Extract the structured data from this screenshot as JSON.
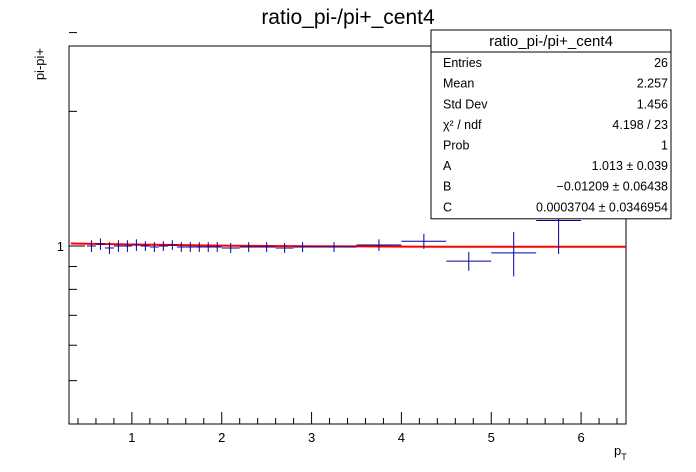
{
  "chart_data": {
    "type": "scatter",
    "title": "ratio_pi-/pi+_cent4",
    "xlabel": "p",
    "xlabel_sub": "T",
    "ylabel": "pi-pi+",
    "xlim": [
      0.3,
      6.5
    ],
    "ylim": [
      0.4,
      2.8
    ],
    "y_log": true,
    "grid": false,
    "x_ticks": [
      1,
      2,
      3,
      4,
      5,
      6
    ],
    "x_tick_labels": [
      "1",
      "2",
      "3",
      "4",
      "5",
      "6"
    ],
    "y_ticks": [
      1
    ],
    "y_tick_labels": [
      "1"
    ],
    "series": [
      {
        "kind": "errorbars",
        "color": "#000099",
        "points": [
          {
            "x": 0.55,
            "y": 1.0,
            "xerr": 0.05,
            "yerr": 0.03
          },
          {
            "x": 0.65,
            "y": 1.01,
            "xerr": 0.05,
            "yerr": 0.03
          },
          {
            "x": 0.75,
            "y": 0.99,
            "xerr": 0.05,
            "yerr": 0.03
          },
          {
            "x": 0.85,
            "y": 1.0,
            "xerr": 0.05,
            "yerr": 0.03
          },
          {
            "x": 0.95,
            "y": 1.0,
            "xerr": 0.05,
            "yerr": 0.03
          },
          {
            "x": 1.05,
            "y": 1.005,
            "xerr": 0.05,
            "yerr": 0.03
          },
          {
            "x": 1.15,
            "y": 1.0,
            "xerr": 0.05,
            "yerr": 0.025
          },
          {
            "x": 1.25,
            "y": 0.995,
            "xerr": 0.05,
            "yerr": 0.025
          },
          {
            "x": 1.35,
            "y": 1.0,
            "xerr": 0.05,
            "yerr": 0.025
          },
          {
            "x": 1.45,
            "y": 1.005,
            "xerr": 0.05,
            "yerr": 0.025
          },
          {
            "x": 1.55,
            "y": 0.995,
            "xerr": 0.05,
            "yerr": 0.025
          },
          {
            "x": 1.65,
            "y": 0.995,
            "xerr": 0.05,
            "yerr": 0.025
          },
          {
            "x": 1.75,
            "y": 0.995,
            "xerr": 0.05,
            "yerr": 0.025
          },
          {
            "x": 1.85,
            "y": 0.995,
            "xerr": 0.05,
            "yerr": 0.025
          },
          {
            "x": 1.95,
            "y": 0.995,
            "xerr": 0.05,
            "yerr": 0.025
          },
          {
            "x": 2.1,
            "y": 0.99,
            "xerr": 0.1,
            "yerr": 0.025
          },
          {
            "x": 2.3,
            "y": 0.995,
            "xerr": 0.1,
            "yerr": 0.025
          },
          {
            "x": 2.5,
            "y": 0.995,
            "xerr": 0.1,
            "yerr": 0.025
          },
          {
            "x": 2.7,
            "y": 0.99,
            "xerr": 0.1,
            "yerr": 0.025
          },
          {
            "x": 2.9,
            "y": 0.995,
            "xerr": 0.1,
            "yerr": 0.025
          },
          {
            "x": 3.25,
            "y": 0.995,
            "xerr": 0.25,
            "yerr": 0.025
          },
          {
            "x": 3.75,
            "y": 1.005,
            "xerr": 0.25,
            "yerr": 0.03
          },
          {
            "x": 4.25,
            "y": 1.025,
            "xerr": 0.25,
            "yerr": 0.04
          },
          {
            "x": 4.75,
            "y": 0.925,
            "xerr": 0.25,
            "yerr": 0.045
          },
          {
            "x": 5.25,
            "y": 0.965,
            "xerr": 0.25,
            "yerr": 0.11
          },
          {
            "x": 5.75,
            "y": 1.14,
            "xerr": 0.25,
            "yerr": 0.18
          }
        ]
      },
      {
        "kind": "fit",
        "color": "#ff0000",
        "points": [
          {
            "x": 0.32,
            "y": 1.013
          },
          {
            "x": 0.5,
            "y": 1.012
          },
          {
            "x": 0.75,
            "y": 1.01
          },
          {
            "x": 1.0,
            "y": 1.008
          },
          {
            "x": 1.25,
            "y": 1.006
          },
          {
            "x": 1.5,
            "y": 1.005
          },
          {
            "x": 1.75,
            "y": 1.003
          },
          {
            "x": 2.0,
            "y": 1.002
          },
          {
            "x": 2.5,
            "y": 1.0
          },
          {
            "x": 3.0,
            "y": 0.999
          },
          {
            "x": 3.5,
            "y": 0.998
          },
          {
            "x": 4.0,
            "y": 0.997
          },
          {
            "x": 4.5,
            "y": 0.996
          },
          {
            "x": 5.0,
            "y": 0.996
          },
          {
            "x": 5.5,
            "y": 0.996
          },
          {
            "x": 6.0,
            "y": 0.996
          },
          {
            "x": 6.5,
            "y": 0.996
          }
        ]
      }
    ],
    "stats_box": {
      "title": "ratio_pi-/pi+_cent4",
      "rows": [
        {
          "label": "Entries",
          "value": "26"
        },
        {
          "label": "Mean",
          "value": "2.257"
        },
        {
          "label": "Std Dev",
          "value": "1.456"
        },
        {
          "label": "χ² / ndf",
          "value": "4.198 / 23"
        },
        {
          "label": "Prob",
          "value": "1"
        },
        {
          "label": "A",
          "value": "1.013 ± 0.039"
        },
        {
          "label": "B",
          "value": "−0.01209 ± 0.06438"
        },
        {
          "label": "C",
          "value": "0.0003704 ± 0.0346954"
        }
      ]
    }
  }
}
